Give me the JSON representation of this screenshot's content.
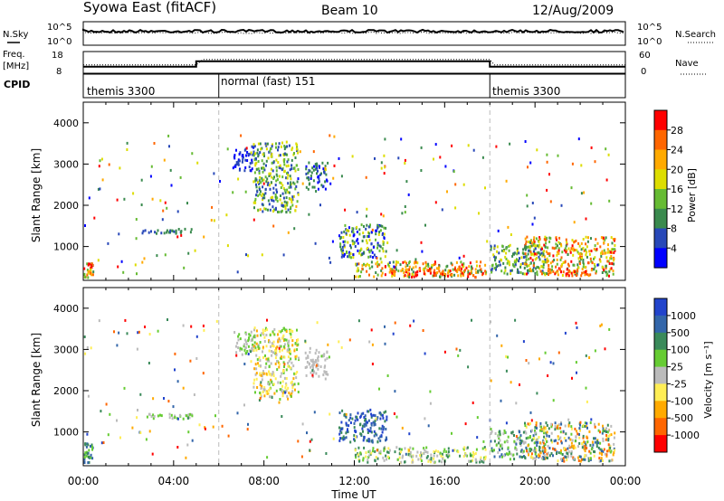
{
  "header": {
    "station": "Syowa East (fitACF)",
    "beam": "Beam 10",
    "date": "12/Aug/2009"
  },
  "panels": {
    "sky": {
      "left_label": "N.Sky",
      "right_label": "N.Search",
      "ticks_left": [
        "10^5",
        "10^0"
      ],
      "ticks_right": [
        "10^5",
        "10^0"
      ]
    },
    "freq": {
      "left_label_1": "Freq.",
      "left_label_2": "[MHz]",
      "right_label": "Nave",
      "ticks_left": [
        "18",
        "8"
      ],
      "ticks_right": [
        "60",
        "0"
      ]
    },
    "cpid": {
      "label": "CPID",
      "segments": [
        {
          "name": "themis 3300",
          "start": 0,
          "end": 6
        },
        {
          "name": "normal (fast) 151",
          "start": 6,
          "end": 18
        },
        {
          "name": "themis 3300",
          "start": 18,
          "end": 24
        }
      ]
    }
  },
  "axes": {
    "x_label": "Time UT",
    "x_ticks": [
      "00:00",
      "04:00",
      "08:00",
      "12:00",
      "16:00",
      "20:00",
      "00:00"
    ],
    "y_label": "Slant Range [km]",
    "y_ticks": [
      "1000",
      "2000",
      "3000",
      "4000"
    ]
  },
  "power_colorbar": {
    "label": "Power [dB]",
    "ticks": [
      "4",
      "8",
      "12",
      "16",
      "20",
      "24",
      "28"
    ],
    "colors": [
      "#0000ff",
      "#2848b8",
      "#3a8a4e",
      "#66bb33",
      "#dddd00",
      "#ffaa00",
      "#ff6600",
      "#ff0000"
    ]
  },
  "velocity_colorbar": {
    "label": "Velocity [m s⁻¹]",
    "ticks": [
      "1000",
      "500",
      "100",
      "25",
      "-25",
      "-100",
      "-500",
      "-1000"
    ],
    "colors": [
      "#2244cc",
      "#3366aa",
      "#3a8a5a",
      "#66cc33",
      "#bbbbbb",
      "#ffee55",
      "#ffaa00",
      "#ff6600",
      "#ff0000"
    ]
  },
  "chart_data": {
    "type": "heatmap",
    "title": "Syowa East (fitACF)",
    "xlabel": "Time UT",
    "ylabel": "Slant Range [km]",
    "xlim": [
      0,
      24
    ],
    "ylim": [
      180,
      4500
    ],
    "panels": [
      {
        "name": "Power [dB]",
        "regions": [
          {
            "t": [
              0.0,
              0.4
            ],
            "r": [
              200,
              600
            ],
            "level": [
              3,
              7
            ]
          },
          {
            "t": [
              2.5,
              4.8
            ],
            "r": [
              1280,
              1400
            ],
            "level": [
              1,
              2
            ]
          },
          {
            "t": [
              6.6,
              7.6
            ],
            "r": [
              2800,
              3400
            ],
            "level": [
              0,
              1
            ]
          },
          {
            "t": [
              7.5,
              9.5
            ],
            "r": [
              1800,
              3500
            ],
            "level": [
              1,
              4
            ]
          },
          {
            "t": [
              9.8,
              10.8
            ],
            "r": [
              2300,
              3000
            ],
            "level": [
              0,
              2
            ]
          },
          {
            "t": [
              11.3,
              13.4
            ],
            "r": [
              700,
              1500
            ],
            "level": [
              0,
              4
            ]
          },
          {
            "t": [
              12.0,
              17.8
            ],
            "r": [
              220,
              600
            ],
            "level": [
              2,
              7
            ]
          },
          {
            "t": [
              13.5,
              17.8
            ],
            "r": [
              250,
              420
            ],
            "level": [
              5,
              7
            ]
          },
          {
            "t": [
              18.0,
              20.5
            ],
            "r": [
              300,
              1000
            ],
            "level": [
              1,
              4
            ]
          },
          {
            "t": [
              19.5,
              23.5
            ],
            "r": [
              250,
              1200
            ],
            "level": [
              2,
              7
            ]
          },
          {
            "t": [
              20.5,
              22.5
            ],
            "r": [
              250,
              450
            ],
            "level": [
              5,
              7
            ]
          }
        ]
      },
      {
        "name": "Velocity [m s-1]",
        "regions": [
          {
            "t": [
              0.0,
              0.4
            ],
            "r": [
              200,
              700
            ],
            "level": [
              1,
              3
            ]
          },
          {
            "t": [
              2.5,
              4.8
            ],
            "r": [
              1280,
              1400
            ],
            "level": [
              3,
              4
            ]
          },
          {
            "t": [
              6.6,
              7.6
            ],
            "r": [
              2800,
              3400
            ],
            "level": [
              3,
              4
            ]
          },
          {
            "t": [
              7.5,
              9.5
            ],
            "r": [
              1800,
              3500
            ],
            "level": [
              3,
              6
            ]
          },
          {
            "t": [
              9.8,
              10.8
            ],
            "r": [
              2300,
              3000
            ],
            "level": [
              4,
              4
            ]
          },
          {
            "t": [
              11.3,
              13.4
            ],
            "r": [
              700,
              1500
            ],
            "level": [
              0,
              2
            ]
          },
          {
            "t": [
              12.0,
              17.8
            ],
            "r": [
              220,
              600
            ],
            "level": [
              2,
              5
            ]
          },
          {
            "t": [
              18.0,
              20.5
            ],
            "r": [
              300,
              1000
            ],
            "level": [
              1,
              4
            ]
          },
          {
            "t": [
              19.5,
              23.5
            ],
            "r": [
              250,
              1200
            ],
            "level": [
              1,
              7
            ]
          }
        ]
      }
    ]
  }
}
